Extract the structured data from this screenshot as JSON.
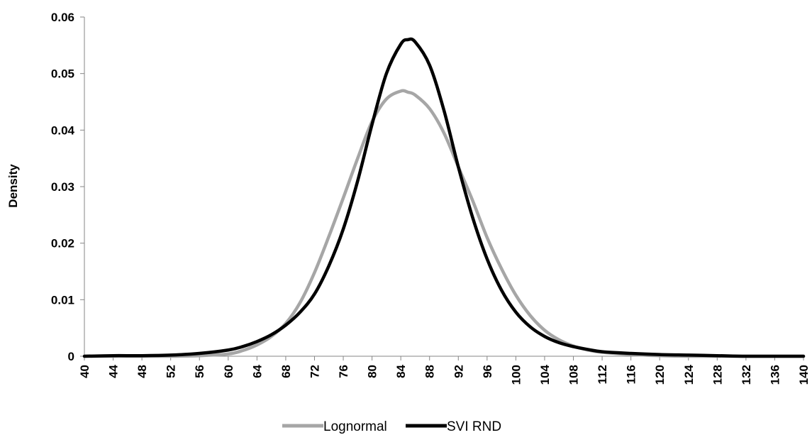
{
  "chart_data": {
    "type": "line",
    "title": "",
    "xlabel": "",
    "ylabel": "Density",
    "xlim": [
      40,
      140
    ],
    "ylim": [
      0,
      0.06
    ],
    "x_ticks": [
      "40",
      "44",
      "48",
      "52",
      "56",
      "60",
      "64",
      "68",
      "72",
      "76",
      "80",
      "84",
      "88",
      "92",
      "96",
      "100",
      "104",
      "108",
      "112",
      "116",
      "120",
      "124",
      "128",
      "132",
      "136",
      "140"
    ],
    "y_ticks": [
      "0",
      "0.01",
      "0.02",
      "0.03",
      "0.04",
      "0.05",
      "0.06"
    ],
    "grid": false,
    "legend_position": "bottom",
    "x": [
      40,
      44,
      48,
      52,
      56,
      60,
      62,
      64,
      66,
      68,
      70,
      72,
      74,
      76,
      78,
      80,
      82,
      84,
      85,
      86,
      88,
      90,
      92,
      94,
      96,
      98,
      100,
      102,
      104,
      106,
      108,
      110,
      112,
      116,
      120,
      124,
      128,
      132,
      136,
      140
    ],
    "series": [
      {
        "name": "Lognormal",
        "color": "#a6a6a6",
        "values": [
          0,
          0,
          0,
          0,
          0.0001,
          0.0004,
          0.001,
          0.002,
          0.0035,
          0.0058,
          0.0095,
          0.0148,
          0.0212,
          0.028,
          0.035,
          0.0415,
          0.0455,
          0.0469,
          0.0467,
          0.0462,
          0.0438,
          0.0395,
          0.0335,
          0.0275,
          0.021,
          0.0155,
          0.0108,
          0.0072,
          0.0046,
          0.0029,
          0.0018,
          0.0011,
          0.0007,
          0.0003,
          0.0001,
          0,
          0,
          0,
          0,
          0
        ]
      },
      {
        "name": "SVI RND",
        "color": "#000000",
        "values": [
          0,
          0.0001,
          0.0001,
          0.0002,
          0.0005,
          0.0011,
          0.0017,
          0.0026,
          0.0038,
          0.0055,
          0.0078,
          0.011,
          0.016,
          0.0225,
          0.031,
          0.041,
          0.05,
          0.0552,
          0.056,
          0.0556,
          0.0515,
          0.0435,
          0.0335,
          0.0245,
          0.0172,
          0.0117,
          0.0078,
          0.0052,
          0.0035,
          0.0024,
          0.0017,
          0.0012,
          0.0008,
          0.0005,
          0.0003,
          0.0002,
          0.0001,
          0,
          0,
          0
        ]
      }
    ]
  }
}
